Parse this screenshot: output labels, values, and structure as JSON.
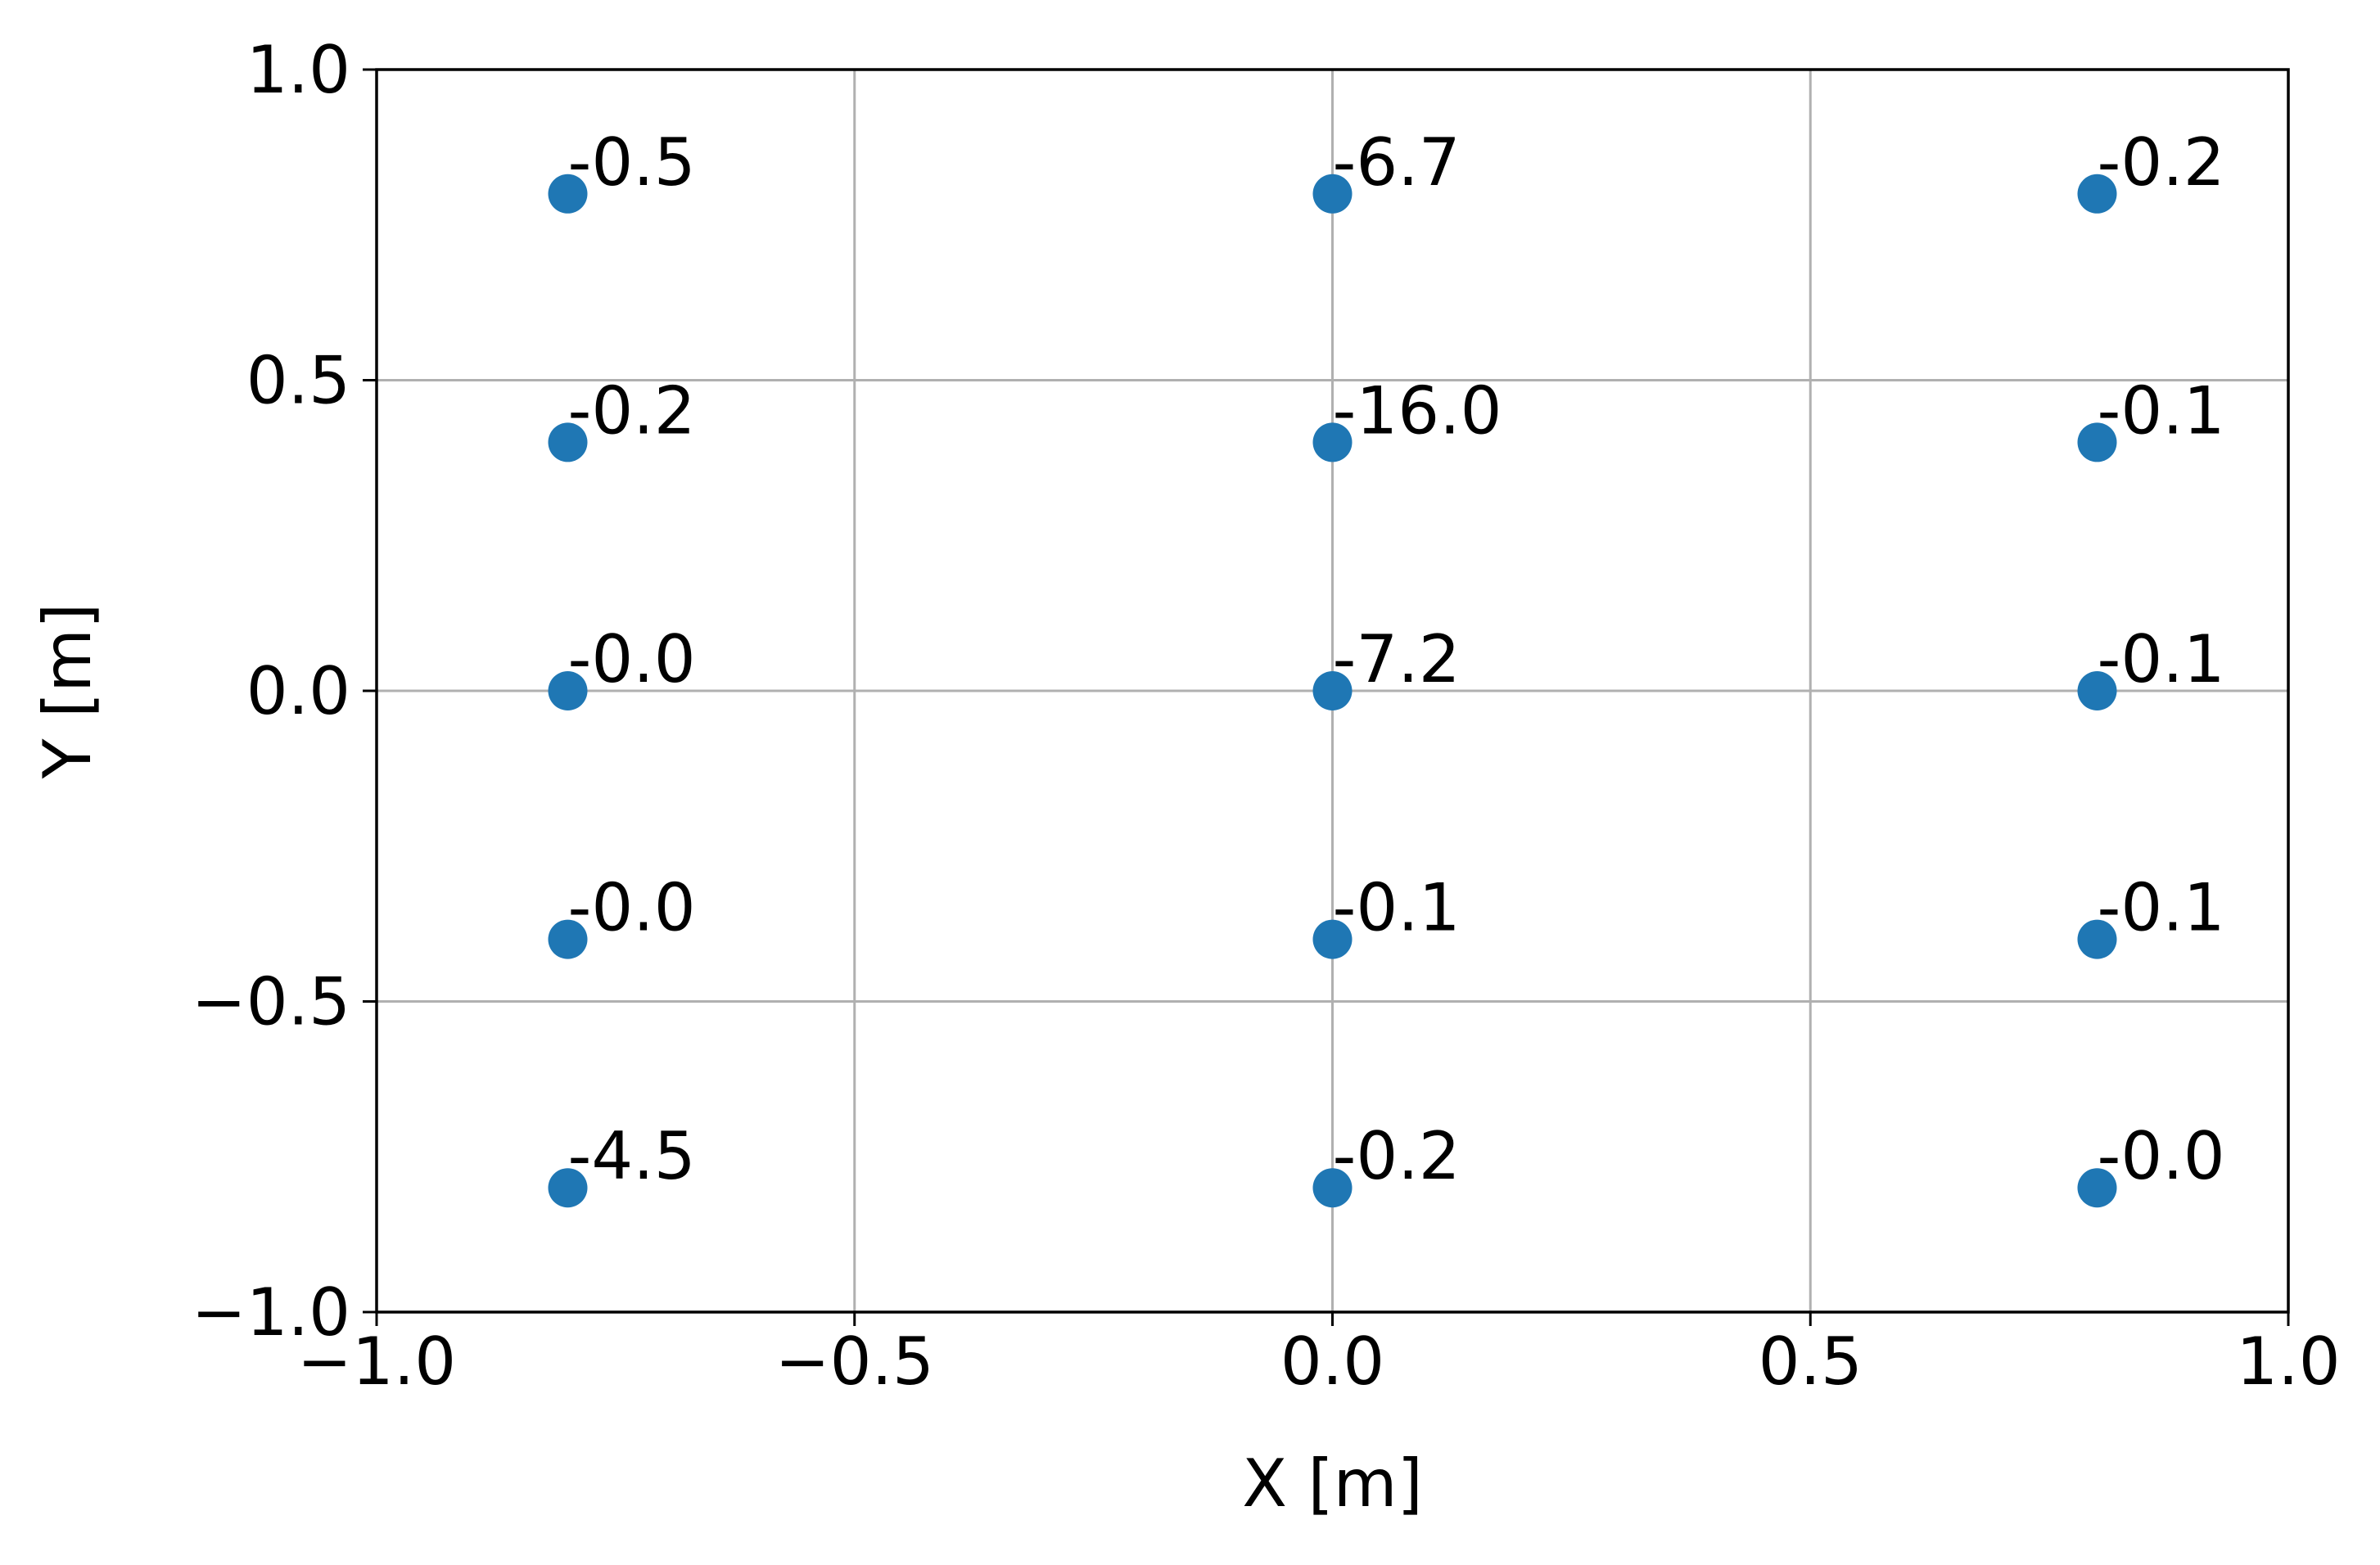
{
  "chart_data": {
    "type": "scatter",
    "title": "",
    "xlabel": "X [m]",
    "ylabel": "Y [m]",
    "xlim": [
      -1.0,
      1.0
    ],
    "ylim": [
      -1.0,
      1.0
    ],
    "grid": true,
    "xticks": [
      -1.0,
      -0.5,
      0.0,
      0.5,
      1.0
    ],
    "yticks": [
      -1.0,
      -0.5,
      0.0,
      0.5,
      1.0
    ],
    "xtick_labels": [
      "−1.0",
      "−0.5",
      "0.0",
      "0.5",
      "1.0"
    ],
    "ytick_labels": [
      "−1.0",
      "−0.5",
      "0.0",
      "0.5",
      "1.0"
    ],
    "marker_color": "#1f77b4",
    "points": [
      {
        "x": -0.8,
        "y": 0.8,
        "label": "-0.5"
      },
      {
        "x": -0.8,
        "y": 0.4,
        "label": "-0.2"
      },
      {
        "x": -0.8,
        "y": 0.0,
        "label": "-0.0"
      },
      {
        "x": -0.8,
        "y": -0.4,
        "label": "-0.0"
      },
      {
        "x": -0.8,
        "y": -0.8,
        "label": "-4.5"
      },
      {
        "x": 0.0,
        "y": 0.8,
        "label": "-6.7"
      },
      {
        "x": 0.0,
        "y": 0.4,
        "label": "-16.0"
      },
      {
        "x": 0.0,
        "y": 0.0,
        "label": "-7.2"
      },
      {
        "x": 0.0,
        "y": -0.4,
        "label": "-0.1"
      },
      {
        "x": 0.0,
        "y": -0.8,
        "label": "-0.2"
      },
      {
        "x": 0.8,
        "y": 0.8,
        "label": "-0.2"
      },
      {
        "x": 0.8,
        "y": 0.4,
        "label": "-0.1"
      },
      {
        "x": 0.8,
        "y": 0.0,
        "label": "-0.1"
      },
      {
        "x": 0.8,
        "y": -0.4,
        "label": "-0.1"
      },
      {
        "x": 0.8,
        "y": -0.8,
        "label": "-0.0"
      }
    ]
  }
}
